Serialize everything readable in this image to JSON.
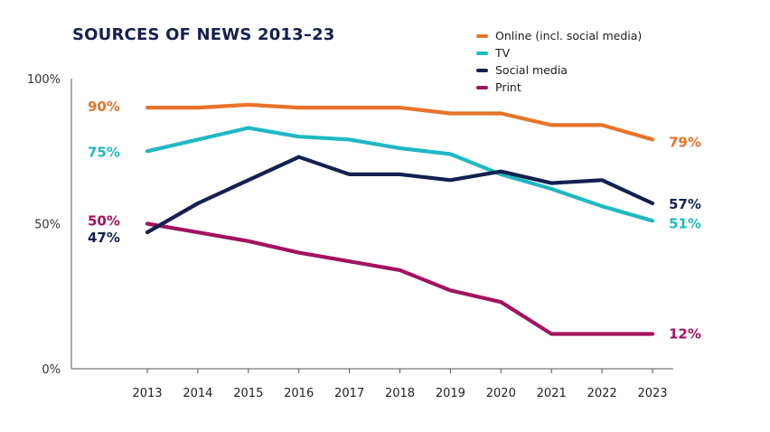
{
  "chart_data": {
    "type": "line",
    "title": "SOURCES OF NEWS 2013–23",
    "x": [
      "2013",
      "2014",
      "2015",
      "2016",
      "2017",
      "2018",
      "2019",
      "2020",
      "2021",
      "2022",
      "2023"
    ],
    "ylim": [
      0,
      100
    ],
    "yticks": [
      "0%",
      "50%",
      "100%"
    ],
    "grid": false,
    "legend_position": "top-right",
    "series": [
      {
        "name": "Online (incl. social media)",
        "color": "#e8732a",
        "values": [
          90,
          90,
          91,
          90,
          90,
          90,
          88,
          88,
          84,
          84,
          79
        ],
        "start_label": "90%",
        "end_label": "79%"
      },
      {
        "name": "TV",
        "color": "#1fb8c3",
        "values": [
          75,
          79,
          83,
          80,
          79,
          76,
          74,
          67,
          62,
          56,
          51
        ],
        "start_label": "75%",
        "end_label": "51%"
      },
      {
        "name": "Social media",
        "color": "#14204f",
        "values": [
          47,
          57,
          65,
          73,
          67,
          67,
          65,
          68,
          64,
          65,
          57
        ],
        "start_label": "47%",
        "end_label": "57%"
      },
      {
        "name": "Print",
        "color": "#a3125f",
        "values": [
          50,
          47,
          44,
          40,
          37,
          34,
          27,
          23,
          12,
          12,
          12
        ],
        "start_label": "50%",
        "end_label": "12%"
      }
    ]
  }
}
